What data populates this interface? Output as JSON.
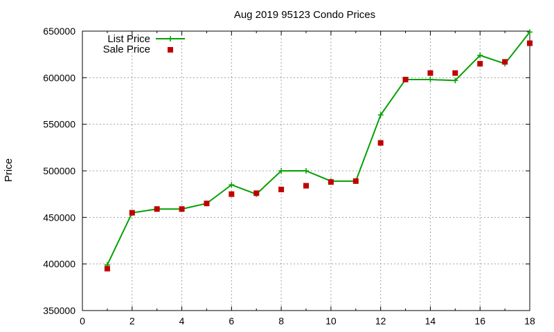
{
  "chart_data": {
    "type": "line",
    "title": "Aug 2019 95123 Condo Prices",
    "xlabel": "",
    "ylabel": "Price",
    "xlim": [
      0,
      18
    ],
    "ylim": [
      350000,
      650000
    ],
    "xticks": [
      0,
      2,
      4,
      6,
      8,
      10,
      12,
      14,
      16,
      18
    ],
    "yticks": [
      350000,
      400000,
      450000,
      500000,
      550000,
      600000,
      650000
    ],
    "grid": true,
    "legend": "top-left",
    "series": [
      {
        "name": "List Price",
        "style": "line-with-plus-markers",
        "color": "#00a000",
        "x": [
          1,
          2,
          3,
          4,
          5,
          6,
          7,
          8,
          9,
          10,
          11,
          12,
          13,
          14,
          15,
          16,
          17,
          18
        ],
        "values": [
          399000,
          455000,
          459000,
          459000,
          465000,
          485000,
          475000,
          500000,
          500000,
          489000,
          489000,
          560000,
          598000,
          598000,
          597000,
          624000,
          615000,
          649000
        ]
      },
      {
        "name": "Sale Price",
        "style": "square-markers",
        "color": "#c00000",
        "x": [
          1,
          2,
          3,
          4,
          5,
          6,
          7,
          8,
          9,
          10,
          11,
          12,
          13,
          14,
          15,
          16,
          17,
          18
        ],
        "values": [
          395000,
          455000,
          459000,
          459000,
          465000,
          475000,
          476000,
          480000,
          484000,
          488000,
          489000,
          530000,
          598000,
          605000,
          605000,
          615000,
          617000,
          637000
        ]
      }
    ]
  }
}
